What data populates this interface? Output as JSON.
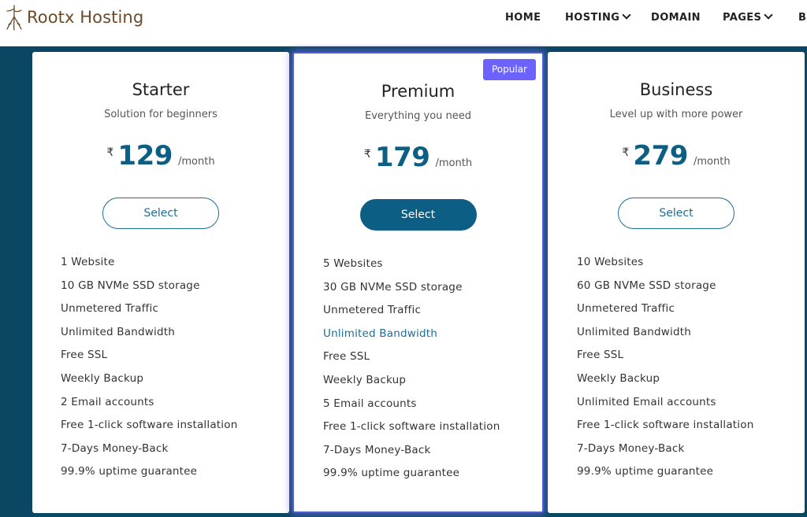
{
  "header": {
    "logo_text": "Rootx Hosting",
    "nav": [
      {
        "label": "HOME",
        "dropdown": false
      },
      {
        "label": "HOSTING",
        "dropdown": true
      },
      {
        "label": "DOMAIN",
        "dropdown": false
      },
      {
        "label": "PAGES",
        "dropdown": true
      },
      {
        "label": "BL",
        "dropdown": false
      }
    ]
  },
  "colors": {
    "background": "#0b4663",
    "brand_blue": "#0d5e84",
    "badge": "#6c63ff",
    "logo": "#6b4a2a"
  },
  "plans": [
    {
      "name": "Starter",
      "subtitle": "Solution for beginners",
      "currency": "₹",
      "price": "129",
      "period": "/month",
      "button": "Select",
      "features": [
        "1 Website",
        "10 GB NVMe SSD storage",
        "Unmetered Traffic",
        "Unlimited Bandwidth",
        "Free SSL",
        "Weekly Backup",
        "2 Email accounts",
        "Free 1-click software installation",
        "7-Days Money-Back",
        "99.9% uptime guarantee"
      ]
    },
    {
      "name": "Premium",
      "subtitle": "Everything you need",
      "currency": "₹",
      "price": "179",
      "period": "/month",
      "button": "Select",
      "badge": "Popular",
      "features": [
        "5 Websites",
        "30 GB NVMe SSD storage",
        "Unmetered Traffic",
        "Unlimited Bandwidth",
        "Free SSL",
        "Weekly Backup",
        "5 Email accounts",
        "Free 1-click software installation",
        "7-Days Money-Back",
        "99.9% uptime guarantee"
      ]
    },
    {
      "name": "Business",
      "subtitle": "Level up with more power",
      "currency": "₹",
      "price": "279",
      "period": "/month",
      "button": "Select",
      "features": [
        "10 Websites",
        "60 GB NVMe SSD storage",
        "Unmetered Traffic",
        "Unlimited Bandwidth",
        "Free SSL",
        "Weekly Backup",
        "Unlimited Email accounts",
        "Free 1-click software installation",
        "7-Days Money-Back",
        "99.9% uptime guarantee"
      ]
    }
  ]
}
